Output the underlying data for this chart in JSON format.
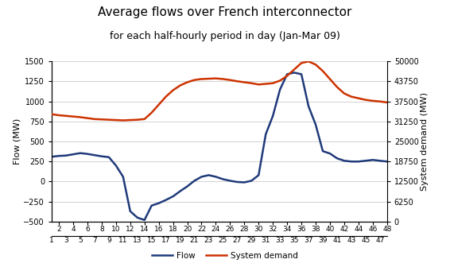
{
  "title_line1": "Average flows over French interconnector",
  "title_line2": "for each half-hourly period in day (Jan-Mar 09)",
  "ylabel_left": "Flow (MW)",
  "ylabel_right": "System demand (MW)",
  "flow_color": "#1F3A7A",
  "demand_color": "#CC3300",
  "ylim_left": [
    -500,
    1500
  ],
  "ylim_right": [
    0,
    50000
  ],
  "yticks_left": [
    -500,
    -250,
    0,
    250,
    500,
    750,
    1000,
    1250,
    1500
  ],
  "yticks_right": [
    0,
    6250,
    12500,
    18750,
    25000,
    31250,
    37500,
    43750,
    50000
  ],
  "flow_values": [
    310,
    320,
    325,
    340,
    355,
    345,
    330,
    315,
    305,
    200,
    60,
    -370,
    -450,
    -480,
    -300,
    -270,
    -230,
    -185,
    -120,
    -60,
    10,
    60,
    80,
    60,
    30,
    10,
    -5,
    -10,
    10,
    80,
    590,
    820,
    1150,
    1340,
    1360,
    1340,
    940,
    710,
    380,
    350,
    290,
    260,
    250,
    250,
    260,
    270,
    260,
    250
  ],
  "demand_values": [
    33500,
    33200,
    33000,
    32800,
    32600,
    32300,
    32000,
    31900,
    31800,
    31700,
    31600,
    31700,
    31800,
    32000,
    34000,
    36500,
    39000,
    41000,
    42500,
    43500,
    44200,
    44500,
    44600,
    44700,
    44500,
    44200,
    43800,
    43500,
    43200,
    42800,
    43000,
    43200,
    44000,
    45500,
    47500,
    49500,
    50000,
    49000,
    47000,
    44500,
    42000,
    40000,
    39000,
    38500,
    38000,
    37700,
    37500,
    37200
  ],
  "legend_flow": "Flow",
  "legend_demand": "System demand",
  "background_color": "#ffffff",
  "grid_color": "#c0c0c0",
  "linewidth": 1.8,
  "title1_fontsize": 11,
  "title2_fontsize": 9,
  "axis_label_fontsize": 8,
  "tick_fontsize": 7,
  "xtick_fontsize": 6.5
}
